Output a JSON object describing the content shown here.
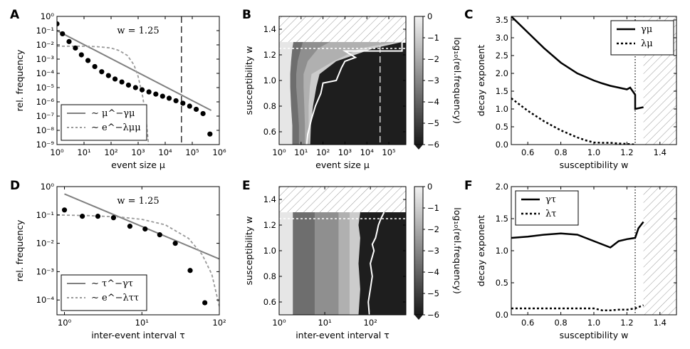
{
  "colors": {
    "power_line": "#808080",
    "exp_line": "#999999",
    "marker": "#000000",
    "hatch": "#999999",
    "boundary": "#ffffff"
  },
  "chart_data": [
    {
      "panel": "A",
      "type": "scatter",
      "title": "",
      "xlabel": "event size μ",
      "ylabel": "rel. frequency",
      "xscale": "log",
      "yscale": "log",
      "xlim": [
        1,
        1000000
      ],
      "ylim": [
        1e-09,
        1
      ],
      "xticks": [
        "10⁰",
        "10¹",
        "10²",
        "10³",
        "10⁴",
        "10⁵",
        "10⁶"
      ],
      "yticks": [
        "10⁰",
        "10⁻¹",
        "10⁻²",
        "10⁻³",
        "10⁻⁴",
        "10⁻⁵",
        "10⁻⁶",
        "10⁻⁷",
        "10⁻⁸",
        "10⁻⁹"
      ],
      "annotation": "w = 1.25",
      "vline": 40000,
      "legend": [
        {
          "label": "∼ μ^−γμ",
          "style": "solid"
        },
        {
          "label": "∼ e^−λμμ",
          "style": "dashed"
        }
      ],
      "points": {
        "x": [
          1,
          1.6,
          2.8,
          4.8,
          8,
          14,
          25,
          45,
          80,
          140,
          250,
          440,
          800,
          1400,
          2500,
          4500,
          8000,
          14000,
          25000,
          45000,
          80000,
          140000,
          250000,
          450000
        ],
        "y": [
          0.3,
          0.06,
          0.017,
          0.006,
          0.002,
          0.0008,
          0.0003,
          0.00013,
          7e-05,
          4e-05,
          2.5e-05,
          1.5e-05,
          1e-05,
          7e-06,
          5e-06,
          3.5e-06,
          2.5e-06,
          1.8e-06,
          1.2e-06,
          8e-07,
          5e-07,
          3e-07,
          1.5e-07,
          5.5e-09
        ]
      },
      "power_law": {
        "x": [
          1,
          500000
        ],
        "y": [
          0.1,
          2.5e-07
        ]
      },
      "exp_fit": {
        "x": [
          1,
          10,
          30,
          100,
          200,
          400,
          700,
          1000,
          1500,
          2000,
          2500,
          3000
        ],
        "y": [
          0.008,
          0.008,
          0.0075,
          0.006,
          0.004,
          0.0018,
          0.0004,
          6e-05,
          2e-06,
          4e-08,
          6e-10,
          1e-09
        ]
      }
    },
    {
      "panel": "B",
      "type": "heatmap",
      "xlabel": "event size μ",
      "ylabel": "susceptibility w",
      "xscale": "log",
      "xlim": [
        1,
        600000
      ],
      "ylim": [
        0.5,
        1.5
      ],
      "xticks": [
        "10⁰",
        "10¹",
        "10²",
        "10³",
        "10⁴",
        "10⁵"
      ],
      "yticks": [
        "0.6",
        "0.8",
        "1.0",
        "1.2",
        "1.4"
      ],
      "colorbar": {
        "label": "log₁₀(rel.frequency)",
        "ticks": [
          "0",
          "−1",
          "−2",
          "−3",
          "−4",
          "−5",
          "−6"
        ],
        "range": [
          -6,
          0
        ]
      },
      "hatch_above": 1.3,
      "hline": 1.25,
      "vline": 40000,
      "contours": [
        {
          "level": -1,
          "x": [
            4,
            4,
            3.5,
            3.2,
            3.2,
            3.5,
            4,
            4.5
          ],
          "y": [
            0.5,
            0.65,
            0.8,
            0.95,
            1.05,
            1.15,
            1.25,
            1.3
          ]
        },
        {
          "level": -2,
          "x": [
            8,
            8,
            7,
            6,
            6,
            7,
            10,
            12
          ],
          "y": [
            0.5,
            0.65,
            0.8,
            0.95,
            1.05,
            1.15,
            1.25,
            1.3
          ]
        },
        {
          "level": -3,
          "x": [
            15,
            15,
            14,
            13,
            13,
            20,
            60,
            200
          ],
          "y": [
            0.5,
            0.65,
            0.8,
            0.95,
            1.05,
            1.15,
            1.25,
            1.3
          ]
        },
        {
          "level": -4,
          "x": [
            22,
            22,
            22,
            25,
            30,
            300,
            5000,
            200000
          ],
          "y": [
            0.5,
            0.65,
            0.8,
            0.95,
            1.05,
            1.15,
            1.25,
            1.3
          ]
        },
        {
          "level": -5,
          "x": [
            26,
            28,
            35,
            50,
            70,
            400,
            20000,
            400000
          ],
          "y": [
            0.5,
            0.65,
            0.8,
            0.95,
            1.05,
            1.15,
            1.25,
            1.3
          ]
        }
      ],
      "white_boundary": {
        "x": [
          18,
          20,
          30,
          45,
          80,
          100,
          400,
          700,
          1000,
          3000,
          1000,
          400000,
          400000,
          600000
        ],
        "y": [
          0.5,
          0.58,
          0.7,
          0.8,
          0.9,
          0.98,
          1.0,
          1.1,
          1.15,
          1.18,
          1.23,
          1.23,
          1.3,
          1.3
        ]
      }
    },
    {
      "panel": "C",
      "type": "line",
      "xlabel": "susceptibility w",
      "ylabel": "decay exponent",
      "xlim": [
        0.5,
        1.5
      ],
      "ylim": [
        0,
        3.6
      ],
      "xticks": [
        "0.6",
        "0.8",
        "1.0",
        "1.2",
        "1.4"
      ],
      "yticks": [
        "0.0",
        "0.5",
        "1.0",
        "1.5",
        "2.0",
        "2.5",
        "3.0",
        "3.5"
      ],
      "hatch_above": 1.3,
      "vline": 1.25,
      "legend": [
        {
          "label": "γμ",
          "style": "solid"
        },
        {
          "label": "λμ",
          "style": "dashed"
        }
      ],
      "series": [
        {
          "name": "γμ",
          "style": "solid",
          "x": [
            0.5,
            0.6,
            0.7,
            0.8,
            0.9,
            0.95,
            1.0,
            1.05,
            1.1,
            1.15,
            1.2,
            1.22,
            1.25,
            1.25,
            1.3
          ],
          "y": [
            3.6,
            3.15,
            2.7,
            2.3,
            2.0,
            1.9,
            1.8,
            1.72,
            1.65,
            1.6,
            1.55,
            1.6,
            1.4,
            1.0,
            1.05
          ]
        },
        {
          "name": "λμ",
          "style": "dashed",
          "x": [
            0.5,
            0.6,
            0.7,
            0.8,
            0.9,
            0.95,
            1.0,
            1.05,
            1.1,
            1.15,
            1.2,
            1.25
          ],
          "y": [
            1.3,
            0.95,
            0.65,
            0.4,
            0.2,
            0.12,
            0.06,
            0.05,
            0.05,
            0.03,
            0.02,
            0.0
          ]
        }
      ]
    },
    {
      "panel": "D",
      "type": "scatter",
      "xlabel": "inter-event interval τ",
      "ylabel": "rel. frequency",
      "xscale": "log",
      "yscale": "log",
      "xlim": [
        0.8,
        100
      ],
      "ylim": [
        3e-05,
        1
      ],
      "xticks": [
        "10⁰",
        "10¹",
        "10²"
      ],
      "yticks": [
        "10⁰",
        "10⁻¹",
        "10⁻²",
        "10⁻³",
        "10⁻⁴"
      ],
      "annotation": "w = 1.25",
      "legend": [
        {
          "label": "∼ τ^−γτ",
          "style": "solid"
        },
        {
          "label": "∼ e^−λττ",
          "style": "dashed"
        }
      ],
      "points": {
        "x": [
          1,
          1.7,
          2.7,
          4.3,
          7,
          11,
          17,
          27,
          42,
          65
        ],
        "y": [
          0.15,
          0.09,
          0.09,
          0.08,
          0.04,
          0.032,
          0.02,
          0.01,
          0.0011,
          8e-05
        ]
      },
      "power_law": {
        "x": [
          1,
          100
        ],
        "y": [
          0.55,
          0.0028
        ]
      },
      "exp_fit": {
        "x": [
          0.8,
          2,
          5,
          10,
          20,
          40,
          60,
          80,
          100
        ],
        "y": [
          0.1,
          0.095,
          0.085,
          0.07,
          0.045,
          0.015,
          0.004,
          0.0008,
          6e-05
        ]
      }
    },
    {
      "panel": "E",
      "type": "heatmap",
      "xlabel": "inter-event interval τ",
      "ylabel": "susceptibility w",
      "xscale": "log",
      "xlim": [
        1,
        600
      ],
      "ylim": [
        0.5,
        1.5
      ],
      "xticks": [
        "10⁰",
        "10¹",
        "10²"
      ],
      "yticks": [
        "0.6",
        "0.8",
        "1.0",
        "1.2",
        "1.4"
      ],
      "colorbar": {
        "label": "log₁₀(rel.frequency)",
        "ticks": [
          "0",
          "−1",
          "−2",
          "−3",
          "−4",
          "−5",
          "−6"
        ],
        "range": [
          -6,
          0
        ]
      },
      "hatch_above": 1.3,
      "hline": 1.25,
      "contours": [
        {
          "level": -1,
          "x": [
            2,
            2,
            2,
            2,
            2,
            2
          ],
          "y": [
            0.5,
            0.7,
            0.9,
            1.1,
            1.2,
            1.3
          ]
        },
        {
          "level": -2,
          "x": [
            6,
            6,
            6,
            6,
            6,
            6
          ],
          "y": [
            0.5,
            0.7,
            0.9,
            1.1,
            1.2,
            1.3
          ]
        },
        {
          "level": -3,
          "x": [
            20,
            20,
            20,
            20,
            20,
            20
          ],
          "y": [
            0.5,
            0.7,
            0.9,
            1.1,
            1.2,
            1.3
          ]
        },
        {
          "level": -4,
          "x": [
            35,
            35,
            35,
            35,
            35,
            35
          ],
          "y": [
            0.5,
            0.7,
            0.9,
            1.1,
            1.2,
            1.3
          ]
        },
        {
          "level": -5,
          "x": [
            55,
            60,
            55,
            60,
            55,
            60
          ],
          "y": [
            0.5,
            0.7,
            0.9,
            1.1,
            1.2,
            1.3
          ]
        }
      ],
      "white_boundary": {
        "x": [
          95,
          90,
          100,
          110,
          100,
          120,
          110,
          130,
          140,
          150,
          170,
          200
        ],
        "y": [
          0.5,
          0.6,
          0.7,
          0.8,
          0.9,
          1.0,
          1.05,
          1.1,
          1.15,
          1.2,
          1.25,
          1.3
        ]
      }
    },
    {
      "panel": "F",
      "type": "line",
      "xlabel": "susceptibility w",
      "ylabel": "decay exponent",
      "xlim": [
        0.5,
        1.5
      ],
      "ylim": [
        0,
        2.0
      ],
      "xticks": [
        "0.6",
        "0.8",
        "1.0",
        "1.2",
        "1.4"
      ],
      "yticks": [
        "0.0",
        "0.5",
        "1.0",
        "1.5",
        "2.0"
      ],
      "hatch_above": 1.3,
      "vline": 1.25,
      "legend": [
        {
          "label": "γτ",
          "style": "solid"
        },
        {
          "label": "λτ",
          "style": "dashed"
        }
      ],
      "series": [
        {
          "name": "γτ",
          "style": "solid",
          "x": [
            0.5,
            0.6,
            0.7,
            0.8,
            0.9,
            0.95,
            1.0,
            1.05,
            1.1,
            1.15,
            1.2,
            1.25,
            1.27,
            1.3
          ],
          "y": [
            1.2,
            1.22,
            1.25,
            1.27,
            1.25,
            1.2,
            1.15,
            1.1,
            1.05,
            1.15,
            1.18,
            1.2,
            1.35,
            1.45
          ]
        },
        {
          "name": "λτ",
          "style": "dashed",
          "x": [
            0.5,
            0.6,
            0.7,
            0.8,
            0.9,
            1.0,
            1.05,
            1.1,
            1.15,
            1.2,
            1.25,
            1.3
          ],
          "y": [
            0.1,
            0.1,
            0.1,
            0.1,
            0.1,
            0.1,
            0.07,
            0.07,
            0.08,
            0.08,
            0.1,
            0.15
          ]
        }
      ]
    }
  ]
}
